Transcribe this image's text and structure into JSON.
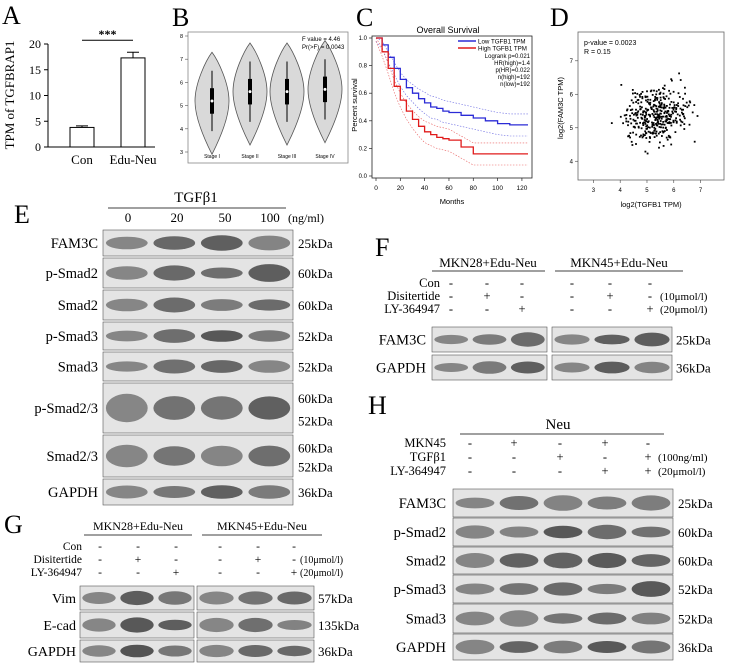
{
  "panels": {
    "A": {
      "letter": "A",
      "ylabel": "TPM of TGFBRAP1",
      "yticks": [
        "0",
        "5",
        "10",
        "15",
        "20"
      ],
      "significance": "***",
      "chart_data": {
        "type": "bar",
        "categories": [
          "Con",
          "Edu-Neu"
        ],
        "values": [
          3.8,
          17.3
        ],
        "errors": [
          0.3,
          1.1
        ],
        "ylabel": "TPM of TGFBRAP1",
        "ylim": [
          0,
          20
        ]
      }
    },
    "B": {
      "letter": "B",
      "stat1": "F value = 4.46",
      "stat2": "Pr(>F) = 0.0043",
      "yticks": [
        "3",
        "4",
        "5",
        "6",
        "7",
        "8"
      ],
      "chart_data": {
        "type": "violin",
        "categories": [
          "Stage I",
          "Stage II",
          "Stage III",
          "Stage IV"
        ],
        "medians": [
          5.2,
          5.6,
          5.6,
          5.7
        ],
        "ylim": [
          3,
          8
        ]
      }
    },
    "C": {
      "letter": "C",
      "title": "Overall Survival",
      "xlabel": "Months",
      "ylabel": "Percent survival",
      "xticks": [
        "0",
        "20",
        "40",
        "60",
        "80",
        "100",
        "120"
      ],
      "yticks": [
        "0.0",
        "0.2",
        "0.4",
        "0.6",
        "0.8",
        "1.0"
      ],
      "legend": [
        "Low TGFB1 TPM",
        "High TGFB1 TPM"
      ],
      "stats": [
        "Logrank p=0.021",
        "HR(high)=1.4",
        "p(HR)=0.022",
        "n(high)=192",
        "n(low)=192"
      ],
      "colors": {
        "low": "#2b2bd6",
        "high": "#e01b1b"
      },
      "chart_data": {
        "type": "line",
        "series": [
          {
            "name": "Low TGFB1 TPM",
            "x": [
              0,
              5,
              10,
              15,
              20,
              25,
              30,
              35,
              40,
              45,
              50,
              55,
              60,
              70,
              80,
              90,
              100,
              110,
              125
            ],
            "y": [
              1.0,
              0.95,
              0.86,
              0.78,
              0.7,
              0.64,
              0.6,
              0.56,
              0.53,
              0.5,
              0.49,
              0.47,
              0.46,
              0.44,
              0.42,
              0.4,
              0.38,
              0.37,
              0.37
            ]
          },
          {
            "name": "High TGFB1 TPM",
            "x": [
              0,
              5,
              10,
              15,
              20,
              25,
              30,
              35,
              40,
              45,
              50,
              55,
              60,
              70,
              80,
              90,
              100,
              110,
              125
            ],
            "y": [
              1.0,
              0.9,
              0.78,
              0.65,
              0.55,
              0.47,
              0.41,
              0.36,
              0.32,
              0.3,
              0.28,
              0.27,
              0.26,
              0.21,
              0.16,
              0.16,
              0.16,
              0.16,
              0.16
            ]
          }
        ],
        "xlim": [
          0,
          125
        ],
        "ylim": [
          0,
          1.0
        ]
      }
    },
    "D": {
      "letter": "D",
      "stat1": "p-value = 0.0023",
      "stat2": "R = 0.15",
      "xlabel": "log2(TGFB1 TPM)",
      "ylabel": "log2(FAM3C TPM)",
      "xticks": [
        "3",
        "4",
        "5",
        "6",
        "7"
      ],
      "yticks": [
        "4",
        "5",
        "6",
        "7"
      ],
      "chart_data": {
        "type": "scatter",
        "xlim": [
          2.5,
          7.8
        ],
        "ylim": [
          3.5,
          7.8
        ],
        "r": 0.15,
        "n_points": 384
      }
    },
    "E": {
      "letter": "E",
      "treatment": "TGFβ1",
      "doses": [
        "0",
        "20",
        "50",
        "100"
      ],
      "dose_unit": "(ng/ml)",
      "rows": [
        {
          "label": "FAM3C",
          "sizes": [
            "25kDa"
          ]
        },
        {
          "label": "p-Smad2",
          "sizes": [
            "60kDa"
          ]
        },
        {
          "label": "Smad2",
          "sizes": [
            "60kDa"
          ]
        },
        {
          "label": "p-Smad3",
          "sizes": [
            "52kDa"
          ]
        },
        {
          "label": "Smad3",
          "sizes": [
            "52kDa"
          ]
        },
        {
          "label": "p-Smad2/3",
          "sizes": [
            "60kDa",
            "52kDa"
          ]
        },
        {
          "label": "Smad2/3",
          "sizes": [
            "60kDa",
            "52kDa"
          ]
        },
        {
          "label": "GAPDH",
          "sizes": [
            "36kDa"
          ]
        }
      ]
    },
    "F": {
      "letter": "F",
      "group1": "MKN28+Edu-Neu",
      "group2": "MKN45+Edu-Neu",
      "conditions": [
        {
          "label": "Con",
          "marks": [
            "-",
            "-",
            "-",
            "-",
            "-",
            "-"
          ],
          "note": ""
        },
        {
          "label": "Disitertide",
          "marks": [
            "-",
            "+",
            "-",
            "-",
            "+",
            "-"
          ],
          "note": "(10μmol/l)"
        },
        {
          "label": "LY-364947",
          "marks": [
            "-",
            "-",
            "+",
            "-",
            "-",
            "+"
          ],
          "note": "(20μmol/l)"
        }
      ],
      "rows": [
        {
          "label": "FAM3C",
          "size": "25kDa"
        },
        {
          "label": "GAPDH",
          "size": "36kDa"
        }
      ]
    },
    "G": {
      "letter": "G",
      "group1": "MKN28+Edu-Neu",
      "group2": "MKN45+Edu-Neu",
      "conditions": [
        {
          "label": "Con",
          "marks": [
            "-",
            "-",
            "-",
            "-",
            "-",
            "-"
          ],
          "note": ""
        },
        {
          "label": "Disitertide",
          "marks": [
            "-",
            "+",
            "-",
            "-",
            "+",
            "-"
          ],
          "note": "(10μmol/l)"
        },
        {
          "label": "LY-364947",
          "marks": [
            "-",
            "-",
            "+",
            "-",
            "-",
            "+"
          ],
          "note": "(20μmol/l)"
        }
      ],
      "rows": [
        {
          "label": "Vim",
          "size": "57kDa"
        },
        {
          "label": "E-cad",
          "size": "135kDa"
        },
        {
          "label": "GAPDH",
          "size": "36kDa"
        }
      ]
    },
    "H": {
      "letter": "H",
      "group": "Neu",
      "conditions": [
        {
          "label": "MKN45",
          "marks": [
            "-",
            "+",
            "-",
            "+",
            "-"
          ],
          "note": ""
        },
        {
          "label": "TGFβ1",
          "marks": [
            "-",
            "-",
            "+",
            "-",
            "+"
          ],
          "note": "(100ng/ml)"
        },
        {
          "label": "LY-364947",
          "marks": [
            "-",
            "-",
            "-",
            "+",
            "+"
          ],
          "note": "(20μmol/l)"
        }
      ],
      "rows": [
        {
          "label": "FAM3C",
          "size": "25kDa"
        },
        {
          "label": "p-Smad2",
          "size": "60kDa"
        },
        {
          "label": "Smad2",
          "size": "60kDa"
        },
        {
          "label": "p-Smad3",
          "size": "52kDa"
        },
        {
          "label": "Smad3",
          "size": "52kDa"
        },
        {
          "label": "GAPDH",
          "size": "36kDa"
        }
      ]
    }
  }
}
